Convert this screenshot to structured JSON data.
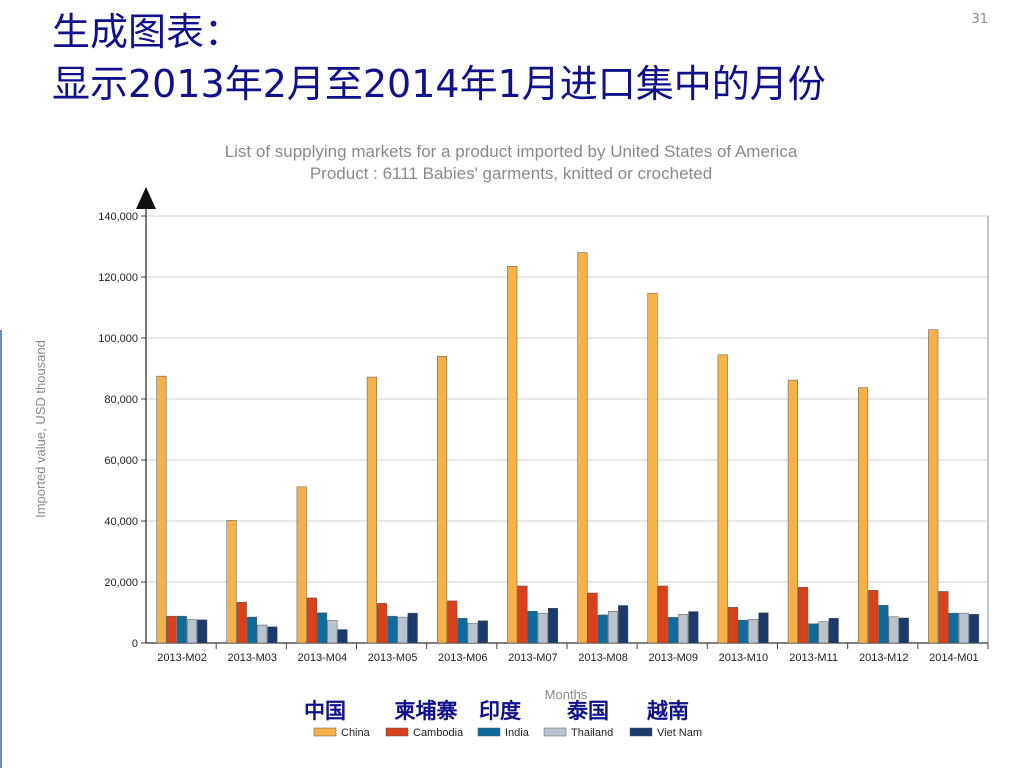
{
  "slide": {
    "title_line1": "生成图表：",
    "title_line2": "显示2013年2月至2014年1月进口集中的月份",
    "page_number": "31"
  },
  "chinese_legend": [
    "中国",
    "柬埔寨",
    "印度",
    "泰国",
    "越南"
  ],
  "chart_data": {
    "type": "bar",
    "title": "List of supplying markets for a product imported by United States of America",
    "subtitle": "Product : 6111 Babies' garments, knitted or crocheted",
    "xlabel": "Months",
    "ylabel": "Imported value, USD thousand",
    "ylim": [
      0,
      140000
    ],
    "yticks": [
      0,
      20000,
      40000,
      60000,
      80000,
      100000,
      120000,
      140000
    ],
    "ytick_labels": [
      "0",
      "20,000",
      "40,000",
      "60,000",
      "80,000",
      "100,000",
      "120,000",
      "140,000"
    ],
    "grid": true,
    "legend_position": "bottom",
    "categories": [
      "2013-M02",
      "2013-M03",
      "2013-M04",
      "2013-M05",
      "2013-M06",
      "2013-M07",
      "2013-M08",
      "2013-M09",
      "2013-M10",
      "2013-M11",
      "2013-M12",
      "2014-M01"
    ],
    "series": [
      {
        "name": "China",
        "color": "#f7b149",
        "values": [
          87500,
          40200,
          51200,
          87200,
          94000,
          123500,
          128000,
          114700,
          94500,
          86200,
          83700,
          102700
        ]
      },
      {
        "name": "Cambodia",
        "color": "#d9411b",
        "values": [
          8800,
          13400,
          14800,
          13000,
          13800,
          18700,
          16400,
          18700,
          11700,
          18300,
          17300,
          16900
        ]
      },
      {
        "name": "India",
        "color": "#0f6b9b",
        "values": [
          8800,
          8500,
          9900,
          8800,
          8100,
          10400,
          9200,
          8400,
          7500,
          6300,
          12400,
          9800
        ]
      },
      {
        "name": "Thailand",
        "color": "#b9c3cf",
        "values": [
          7700,
          5900,
          7400,
          8500,
          6500,
          9800,
          10400,
          9400,
          7800,
          7000,
          8600,
          9800
        ]
      },
      {
        "name": "Viet Nam",
        "color": "#1b3a6c",
        "values": [
          7600,
          5300,
          4400,
          9800,
          7300,
          11400,
          12300,
          10300,
          9900,
          8100,
          8200,
          9400
        ]
      }
    ]
  }
}
